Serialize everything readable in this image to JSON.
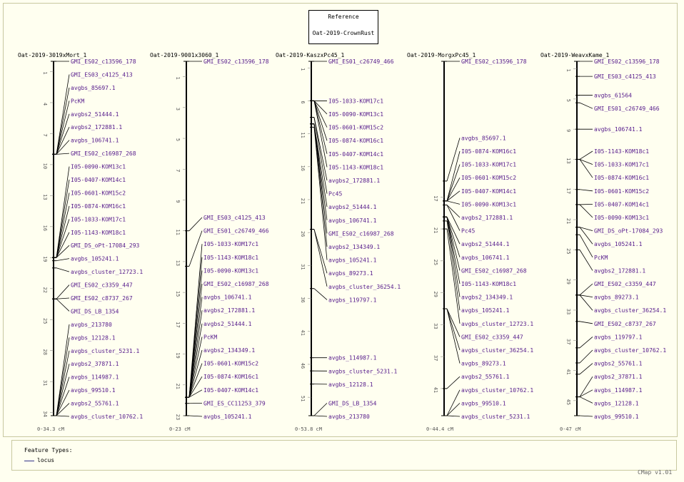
{
  "reference": {
    "line1": "Reference",
    "line2": "Oat-2019-CrownRust"
  },
  "legend": {
    "title": "Feature Types:",
    "label": "locus",
    "color": "#33338a"
  },
  "version": "CMap v1.01",
  "colors": {
    "feature_label": "#551a8b",
    "axis": "#000000",
    "tick_label": "#555555"
  },
  "maps": [
    {
      "title": "Oat-2019-3019xMort_1",
      "range": "0-34.3 cM",
      "max": 34.3,
      "ticks": [
        1,
        4,
        7,
        10,
        13,
        16,
        19,
        22,
        25,
        28,
        31,
        34
      ],
      "features": [
        {
          "name": "GMI_ES02_c13596_178",
          "pos": 0.0
        },
        {
          "name": "GMI_ES03_c4125_413",
          "pos": 9.0
        },
        {
          "name": "avgbs_85697.1",
          "pos": 9.0
        },
        {
          "name": "PcKM",
          "pos": 9.0
        },
        {
          "name": "avgbs2_51444.1",
          "pos": 9.0
        },
        {
          "name": "avgbs2_172881.1",
          "pos": 9.0
        },
        {
          "name": "avgbs_106741.1",
          "pos": 9.0
        },
        {
          "name": "GMI_ES02_c16987_268",
          "pos": 9.0
        },
        {
          "name": "I05-0090-KOM13c1",
          "pos": 19.0
        },
        {
          "name": "I05-0407-KOM14c1",
          "pos": 19.0
        },
        {
          "name": "I05-0601-KOM15c2",
          "pos": 19.0
        },
        {
          "name": "I05-0874-KOM16c1",
          "pos": 19.0
        },
        {
          "name": "I05-1033-KOM17c1",
          "pos": 19.0
        },
        {
          "name": "I05-1143-KOM18c1",
          "pos": 19.0
        },
        {
          "name": "GMI_DS_oPt-17084_293",
          "pos": 19.0
        },
        {
          "name": "avgbs_105241.1",
          "pos": 19.3
        },
        {
          "name": "avgbs_cluster_12723.1",
          "pos": 20.0
        },
        {
          "name": "GMI_ES02_c3359_447",
          "pos": 23.0
        },
        {
          "name": "GMI_ES02_c8737_267",
          "pos": 23.0
        },
        {
          "name": "GMI_DS_LB_1354",
          "pos": 23.0
        },
        {
          "name": "avgbs_213780",
          "pos": 34.3
        },
        {
          "name": "avgbs_12128.1",
          "pos": 34.3
        },
        {
          "name": "avgbs_cluster_5231.1",
          "pos": 34.3
        },
        {
          "name": "avgbs2_37871.1",
          "pos": 34.3
        },
        {
          "name": "avgbs_114987.1",
          "pos": 34.3
        },
        {
          "name": "avgbs_99510.1",
          "pos": 34.3
        },
        {
          "name": "avgbs2_55761.1",
          "pos": 34.3
        },
        {
          "name": "avgbs_cluster_10762.1",
          "pos": 34.3
        }
      ]
    },
    {
      "title": "Oat-2019-9001x3060_1",
      "range": "0-23 cM",
      "max": 23,
      "ticks": [
        1,
        3,
        5,
        7,
        9,
        11,
        13,
        15,
        17,
        19,
        21,
        23
      ],
      "features": [
        {
          "name": "GMI_ES02_c13596_178",
          "pos": 0.0
        },
        {
          "name": "GMI_ES03_c4125_413",
          "pos": 11.0
        },
        {
          "name": "GMI_ES01_c26749_466",
          "pos": 13.3
        },
        {
          "name": "I05-1033-KOM17c1",
          "pos": 21.8
        },
        {
          "name": "I05-1143-KOM18c1",
          "pos": 21.8
        },
        {
          "name": "I05-0090-KOM13c1",
          "pos": 21.8
        },
        {
          "name": "GMI_ES02_c16987_268",
          "pos": 21.8
        },
        {
          "name": "avgbs_106741.1",
          "pos": 21.8
        },
        {
          "name": "avgbs2_172881.1",
          "pos": 21.8
        },
        {
          "name": "avgbs2_51444.1",
          "pos": 21.8
        },
        {
          "name": "PcKM",
          "pos": 21.8
        },
        {
          "name": "avgbs2_134349.1",
          "pos": 21.8
        },
        {
          "name": "I05-0601-KOM15c2",
          "pos": 21.8
        },
        {
          "name": "I05-0874-KOM16c1",
          "pos": 21.8
        },
        {
          "name": "I05-0407-KOM14c1",
          "pos": 21.8
        },
        {
          "name": "GMI_ES_CC11253_379",
          "pos": 22.2
        },
        {
          "name": "avgbs_105241.1",
          "pos": 23.0
        }
      ]
    },
    {
      "title": "Oat-2019-KaszxPc45_1",
      "range": "0-53.8 cM",
      "max": 53.8,
      "ticks": [
        1,
        6,
        11,
        16,
        21,
        26,
        31,
        36,
        41,
        46,
        51
      ],
      "features": [
        {
          "name": "GMI_ES01_c26749_466",
          "pos": 0.0
        },
        {
          "name": "I05-1033-KOM17c1",
          "pos": 6.0
        },
        {
          "name": "I05-0090-KOM13c1",
          "pos": 6.0
        },
        {
          "name": "I05-0601-KOM15c2",
          "pos": 6.0
        },
        {
          "name": "I05-0874-KOM16c1",
          "pos": 6.0
        },
        {
          "name": "I05-0407-KOM14c1",
          "pos": 6.0
        },
        {
          "name": "I05-1143-KOM18c1",
          "pos": 6.0
        },
        {
          "name": "avgbs2_172881.1",
          "pos": 8.5
        },
        {
          "name": "Pc45",
          "pos": 8.5
        },
        {
          "name": "avgbs2_51444.1",
          "pos": 9.5
        },
        {
          "name": "avgbs_106741.1",
          "pos": 9.5
        },
        {
          "name": "GMI_ES02_c16987_268",
          "pos": 9.5
        },
        {
          "name": "avgbs2_134349.1",
          "pos": 9.5
        },
        {
          "name": "avgbs_105241.1",
          "pos": 10.0
        },
        {
          "name": "avgbs_89273.1",
          "pos": 25.5
        },
        {
          "name": "avgbs_cluster_36254.1",
          "pos": 25.5
        },
        {
          "name": "avgbs_119797.1",
          "pos": 34.5
        },
        {
          "name": "avgbs_114987.1",
          "pos": 45.0
        },
        {
          "name": "avgbs_cluster_5231.1",
          "pos": 47.0
        },
        {
          "name": "avgbs_12128.1",
          "pos": 49.0
        },
        {
          "name": "GMI_DS_LB_1354",
          "pos": 53.8
        },
        {
          "name": "avgbs_213780",
          "pos": 53.8
        }
      ]
    },
    {
      "title": "Oat-2019-MorgxPc45_1",
      "range": "0-44.4 cM",
      "max": 44.4,
      "ticks": [
        17,
        21,
        25,
        29,
        33,
        37,
        41
      ],
      "features": [
        {
          "name": "GMI_ES02_c13596_178",
          "pos": 0.0
        },
        {
          "name": "avgbs_85697.1",
          "pos": 15.0
        },
        {
          "name": "I05-0874-KOM16c1",
          "pos": 17.5
        },
        {
          "name": "I05-1033-KOM17c1",
          "pos": 17.5
        },
        {
          "name": "I05-0601-KOM15c2",
          "pos": 17.5
        },
        {
          "name": "I05-0407-KOM14c1",
          "pos": 17.5
        },
        {
          "name": "I05-0090-KOM13c1",
          "pos": 17.5
        },
        {
          "name": "avgbs2_172881.1",
          "pos": 18.0
        },
        {
          "name": "Pc45",
          "pos": 18.0
        },
        {
          "name": "avgbs2_51444.1",
          "pos": 19.5
        },
        {
          "name": "avgbs_106741.1",
          "pos": 19.5
        },
        {
          "name": "GMI_ES02_c16987_268",
          "pos": 19.5
        },
        {
          "name": "I05-1143-KOM18c1",
          "pos": 19.5
        },
        {
          "name": "avgbs2_134349.1",
          "pos": 19.5
        },
        {
          "name": "avgbs_105241.1",
          "pos": 20.0
        },
        {
          "name": "avgbs_cluster_12723.1",
          "pos": 21.0
        },
        {
          "name": "GMI_ES02_c3359_447",
          "pos": 31.0
        },
        {
          "name": "avgbs_cluster_36254.1",
          "pos": 31.0
        },
        {
          "name": "avgbs_89273.1",
          "pos": 31.0
        },
        {
          "name": "avgbs2_55761.1",
          "pos": 41.0
        },
        {
          "name": "avgbs_cluster_10762.1",
          "pos": 44.4
        },
        {
          "name": "avgbs_99510.1",
          "pos": 44.4
        },
        {
          "name": "avgbs_cluster_5231.1",
          "pos": 44.4
        }
      ]
    },
    {
      "title": "Oat-2019-WeavxKame_1",
      "range": "0-47 cM",
      "max": 47,
      "ticks": [
        1,
        5,
        9,
        13,
        17,
        21,
        25,
        29,
        33,
        37,
        41,
        45
      ],
      "features": [
        {
          "name": "GMI_ES02_c13596_178",
          "pos": 0.0
        },
        {
          "name": "GMI_ES03_c4125_413",
          "pos": 2.0
        },
        {
          "name": "avgbs_61564",
          "pos": 4.5
        },
        {
          "name": "GMI_ES01_c26749_466",
          "pos": 5.5
        },
        {
          "name": "avgbs_106741.1",
          "pos": 9.0
        },
        {
          "name": "I05-1143-KOM18c1",
          "pos": 13.0
        },
        {
          "name": "I05-1033-KOM17c1",
          "pos": 13.0
        },
        {
          "name": "I05-0874-KOM16c1",
          "pos": 13.0
        },
        {
          "name": "I05-0601-KOM15c2",
          "pos": 17.0
        },
        {
          "name": "I05-0407-KOM14c1",
          "pos": 19.0
        },
        {
          "name": "I05-0090-KOM13c1",
          "pos": 19.0
        },
        {
          "name": "GMI_DS_oPt-17084_293",
          "pos": 22.0
        },
        {
          "name": "avgbs_105241.1",
          "pos": 22.0
        },
        {
          "name": "PcKM",
          "pos": 23.0
        },
        {
          "name": "avgbs2_172881.1",
          "pos": 25.0
        },
        {
          "name": "GMI_ES02_c3359_447",
          "pos": 31.0
        },
        {
          "name": "avgbs_89273.1",
          "pos": 31.0
        },
        {
          "name": "avgbs_cluster_36254.1",
          "pos": 31.0
        },
        {
          "name": "GMI_ES02_c8737_267",
          "pos": 34.5
        },
        {
          "name": "avgbs_119797.1",
          "pos": 38.0
        },
        {
          "name": "avgbs_cluster_10762.1",
          "pos": 40.0
        },
        {
          "name": "avgbs2_55761.1",
          "pos": 41.5
        },
        {
          "name": "avgbs2_37871.1",
          "pos": 44.5
        },
        {
          "name": "avgbs_114987.1",
          "pos": 44.5
        },
        {
          "name": "avgbs_12128.1",
          "pos": 44.5
        },
        {
          "name": "avgbs_99510.1",
          "pos": 47.0
        }
      ]
    }
  ]
}
